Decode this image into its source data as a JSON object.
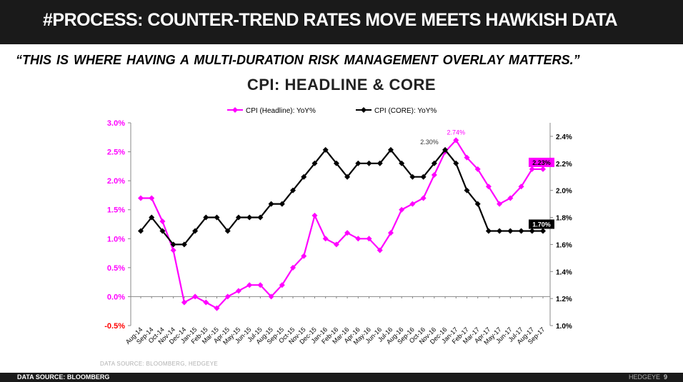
{
  "header": {
    "title": "#PROCESS: COUNTER-TREND RATES MOVE MEETS HAWKISH DATA"
  },
  "quote": "“THIS IS WHERE HAVING A MULTI-DURATION RISK MANAGEMENT OVERLAY MATTERS.”",
  "footer": {
    "source": "DATA SOURCE: BLOOMBERG",
    "brand": "HEDGEYE",
    "page": "9"
  },
  "chart_source": "DATA SOURCE: BLOOMBERG, HEDGEYE",
  "colors": {
    "headline": "#ff00ff",
    "core": "#000000",
    "header_bg": "#1a1a1a"
  },
  "chart_data": {
    "type": "line",
    "title": "CPI: HEADLINE & CORE",
    "categories": [
      "Aug-14",
      "Sep-14",
      "Oct-14",
      "Nov-14",
      "Dec-14",
      "Jan-15",
      "Feb-15",
      "Mar-15",
      "Apr-15",
      "May-15",
      "Jun-15",
      "Jul-15",
      "Aug-15",
      "Sep-15",
      "Oct-15",
      "Nov-15",
      "Dec-15",
      "Jan-16",
      "Feb-16",
      "Mar-16",
      "Apr-16",
      "May-16",
      "Jun-16",
      "Jul-16",
      "Aug-16",
      "Sep-16",
      "Oct-16",
      "Nov-16",
      "Dec-16",
      "Jan-17",
      "Feb-17",
      "Mar-17",
      "Apr-17",
      "May-17",
      "Jun-17",
      "Jul-17",
      "Aug-17",
      "Sep-17"
    ],
    "series": [
      {
        "name": "CPI (Headline): YoY%",
        "axis": "left",
        "color": "#ff00ff",
        "values": [
          1.7,
          1.7,
          1.3,
          0.8,
          -0.1,
          0.0,
          -0.1,
          -0.2,
          0.0,
          0.1,
          0.2,
          0.2,
          0.0,
          0.2,
          0.5,
          0.7,
          1.4,
          1.0,
          0.9,
          1.1,
          1.0,
          1.0,
          0.8,
          1.1,
          1.5,
          1.6,
          1.7,
          2.1,
          2.5,
          2.7,
          2.4,
          2.2,
          1.9,
          1.6,
          1.7,
          1.9,
          2.2,
          2.2
        ]
      },
      {
        "name": "CPI (CORE): YoY%",
        "axis": "right",
        "color": "#000000",
        "values": [
          1.7,
          1.8,
          1.7,
          1.6,
          1.6,
          1.7,
          1.8,
          1.8,
          1.7,
          1.8,
          1.8,
          1.8,
          1.9,
          1.9,
          2.0,
          2.1,
          2.2,
          2.3,
          2.2,
          2.1,
          2.2,
          2.2,
          2.2,
          2.3,
          2.2,
          2.1,
          2.1,
          2.2,
          2.3,
          2.2,
          2.0,
          1.9,
          1.7,
          1.7,
          1.7,
          1.7,
          1.7,
          1.7
        ]
      }
    ],
    "y_left": {
      "min": -0.5,
      "max": 3.0,
      "ticks": [
        "-0.5%",
        "0.0%",
        "0.5%",
        "1.0%",
        "1.5%",
        "2.0%",
        "2.5%",
        "3.0%"
      ]
    },
    "y_right": {
      "min": 1.0,
      "max": 2.5,
      "ticks": [
        "1.0%",
        "1.2%",
        "1.4%",
        "1.6%",
        "1.8%",
        "2.0%",
        "2.2%",
        "2.4%"
      ]
    },
    "annotations": [
      {
        "text": "2.74%",
        "series": 0,
        "index": 29
      },
      {
        "text": "2.30%",
        "series": 1,
        "index": 28
      },
      {
        "text": "2.23%",
        "series": 0,
        "index": 37,
        "boxed": true
      },
      {
        "text": "1.70%",
        "series": 1,
        "index": 37,
        "boxed": true
      }
    ]
  }
}
